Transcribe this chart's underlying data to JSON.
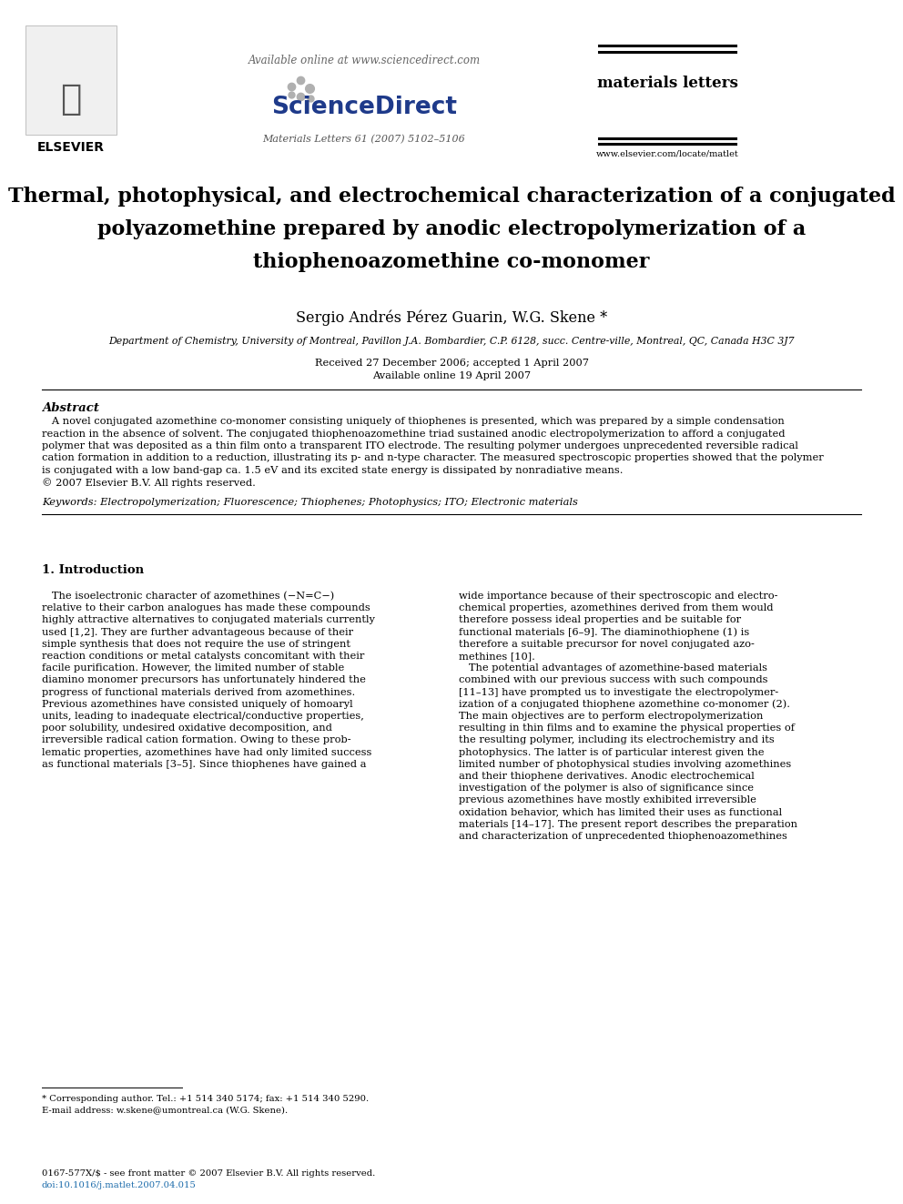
{
  "bg_color": "#ffffff",
  "header": {
    "available_online_text": "Available online at www.sciencedirect.com",
    "journal_name": "materials letters",
    "journal_info": "Materials Letters 61 (2007) 5102–5106",
    "website": "www.elsevier.com/locate/matlet"
  },
  "title_lines": [
    "Thermal, photophysical, and electrochemical characterization of a conjugated",
    "polyazomethine prepared by anodic electropolymerization of a",
    "thiophenoazomethine co-monomer"
  ],
  "authors": "Sergio Andrés Pérez Guarin, W.G. Skene *",
  "affiliation": "Department of Chemistry, University of Montreal, Pavillon J.A. Bombardier, C.P. 6128, succ. Centre-ville, Montreal, QC, Canada H3C 3J7",
  "received_line": "Received 27 December 2006; accepted 1 April 2007",
  "available_online_date": "Available online 19 April 2007",
  "abstract_title": "Abstract",
  "abstract_lines": [
    "   A novel conjugated azomethine co-monomer consisting uniquely of thiophenes is presented, which was prepared by a simple condensation",
    "reaction in the absence of solvent. The conjugated thiophenoazomethine triad sustained anodic electropolymerization to afford a conjugated",
    "polymer that was deposited as a thin film onto a transparent ITO electrode. The resulting polymer undergoes unprecedented reversible radical",
    "cation formation in addition to a reduction, illustrating its p- and n-type character. The measured spectroscopic properties showed that the polymer",
    "is conjugated with a low band-gap ca. 1.5 eV and its excited state energy is dissipated by nonradiative means.",
    "© 2007 Elsevier B.V. All rights reserved."
  ],
  "keywords_text": "Keywords: Electropolymerization; Fluorescence; Thiophenes; Photophysics; ITO; Electronic materials",
  "section1_title": "1. Introduction",
  "col1_lines": [
    "   The isoelectronic character of azomethines (−N=C−)",
    "relative to their carbon analogues has made these compounds",
    "highly attractive alternatives to conjugated materials currently",
    "used [1,2]. They are further advantageous because of their",
    "simple synthesis that does not require the use of stringent",
    "reaction conditions or metal catalysts concomitant with their",
    "facile purification. However, the limited number of stable",
    "diamino monomer precursors has unfortunately hindered the",
    "progress of functional materials derived from azomethines.",
    "Previous azomethines have consisted uniquely of homoaryl",
    "units, leading to inadequate electrical/conductive properties,",
    "poor solubility, undesired oxidative decomposition, and",
    "irreversible radical cation formation. Owing to these prob-",
    "lematic properties, azomethines have had only limited success",
    "as functional materials [3–5]. Since thiophenes have gained a"
  ],
  "col2_lines": [
    "wide importance because of their spectroscopic and electro-",
    "chemical properties, azomethines derived from them would",
    "therefore possess ideal properties and be suitable for",
    "functional materials [6–9]. The diaminothiophene (1) is",
    "therefore a suitable precursor for novel conjugated azo-",
    "methines [10].",
    "   The potential advantages of azomethine-based materials",
    "combined with our previous success with such compounds",
    "[11–13] have prompted us to investigate the electropolymer-",
    "ization of a conjugated thiophene azomethine co-monomer (2).",
    "The main objectives are to perform electropolymerization",
    "resulting in thin films and to examine the physical properties of",
    "the resulting polymer, including its electrochemistry and its",
    "photophysics. The latter is of particular interest given the",
    "limited number of photophysical studies involving azomethines",
    "and their thiophene derivatives. Anodic electrochemical",
    "investigation of the polymer is also of significance since",
    "previous azomethines have mostly exhibited irreversible",
    "oxidation behavior, which has limited their uses as functional",
    "materials [14–17]. The present report describes the preparation",
    "and characterization of unprecedented thiophenoazomethines"
  ],
  "footnote_line1": "* Corresponding author. Tel.: +1 514 340 5174; fax: +1 514 340 5290.",
  "footnote_line2": "E-mail address: w.skene@umontreal.ca (W.G. Skene).",
  "footer_line1": "0167-577X/$ - see front matter © 2007 Elsevier B.V. All rights reserved.",
  "footer_line2": "doi:10.1016/j.matlet.2007.04.015"
}
